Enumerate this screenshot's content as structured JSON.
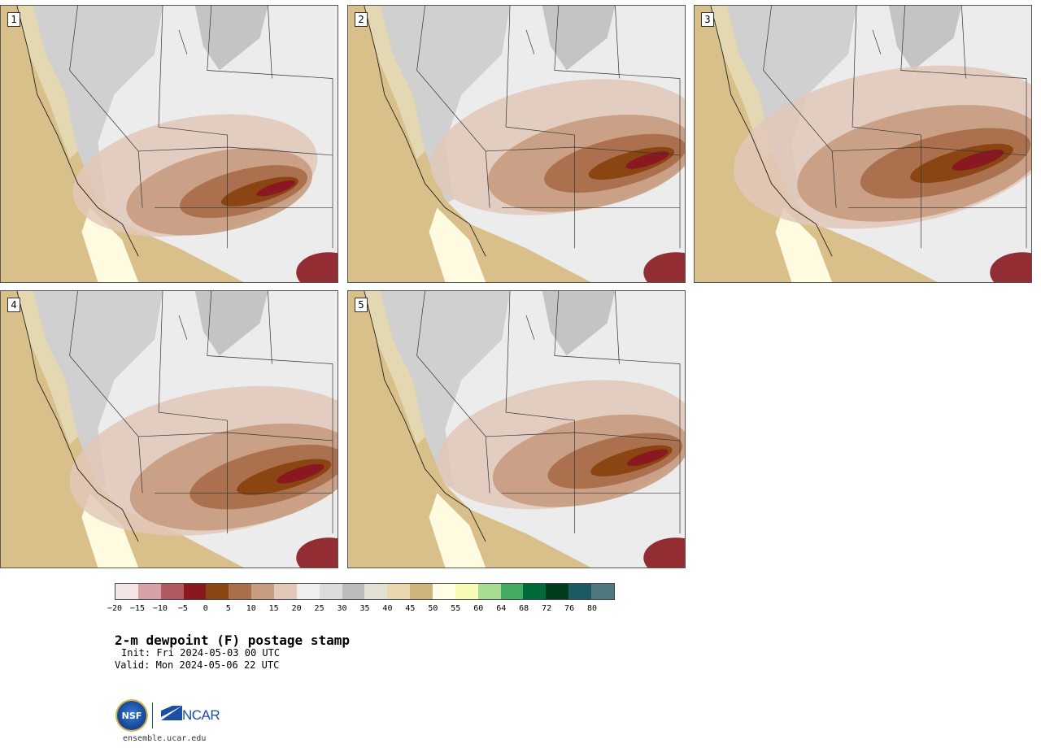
{
  "panels": [
    {
      "number": "1",
      "moist_center": [
        300,
        230
      ],
      "core_scale": 0.9
    },
    {
      "number": "2",
      "moist_center": [
        330,
        195
      ],
      "core_scale": 1.0
    },
    {
      "number": "3",
      "moist_center": [
        310,
        195
      ],
      "core_scale": 1.2
    },
    {
      "number": "4",
      "moist_center": [
        330,
        230
      ],
      "core_scale": 1.1
    },
    {
      "number": "5",
      "moist_center": [
        330,
        210
      ],
      "core_scale": 0.95
    }
  ],
  "colorbar": {
    "colors": [
      "#f3e4e6",
      "#d6a2a8",
      "#b25a62",
      "#8a1820",
      "#8a4512",
      "#a96e4a",
      "#c79c80",
      "#e2c8b8",
      "#efefef",
      "#dcdcdc",
      "#bcbcbc",
      "#e2e0d2",
      "#e9d7ad",
      "#ccb47a",
      "#fffde6",
      "#f7fbb6",
      "#a6dd92",
      "#44aa62",
      "#006a38",
      "#003c1c",
      "#1c5a62",
      "#507880"
    ],
    "ticks": [
      "−20",
      "−15",
      "−10",
      "−5",
      "0",
      "5",
      "10",
      "15",
      "20",
      "25",
      "30",
      "35",
      "40",
      "45",
      "50",
      "55",
      "60",
      "64",
      "68",
      "72",
      "76",
      "80"
    ]
  },
  "title": "2-m dewpoint (F) postage stamp",
  "init": "Init: Fri 2024-05-03 00 UTC",
  "valid": "Valid: Mon 2024-05-06 22 UTC",
  "logos": {
    "nsf": "NSF",
    "ncar": "NCAR"
  },
  "site": "ensemble.ucar.edu",
  "icons": {
    "nsf_logo": "nsf-logo-icon",
    "ncar_logo": "ncar-logo-icon"
  }
}
